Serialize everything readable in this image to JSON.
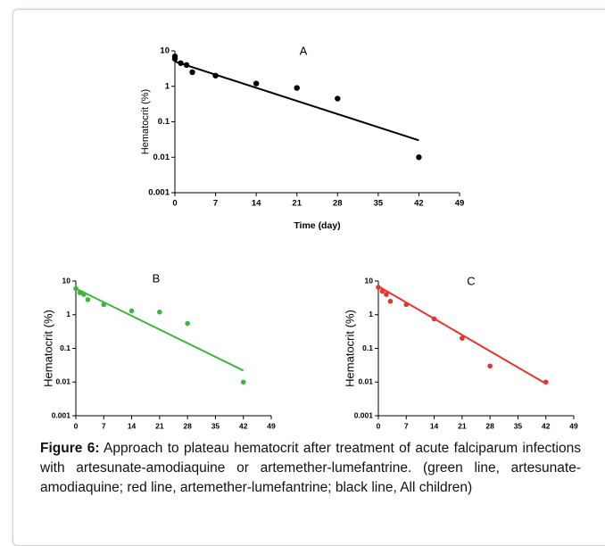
{
  "chart_data": [
    {
      "type": "scatter",
      "title": "A",
      "y_label": "Hematocrit (%)",
      "x_label": "Time (day)",
      "log_y": true,
      "xlim": [
        0,
        49
      ],
      "xticks": [
        0,
        7,
        14,
        21,
        28,
        35,
        42,
        49
      ],
      "ylim": [
        0.001,
        10
      ],
      "yticks": [
        0.001,
        0.01,
        0.1,
        1,
        10
      ],
      "series": [
        {
          "style": "points",
          "color": "#000000",
          "x": [
            0,
            0,
            1,
            2,
            3,
            7,
            14,
            21,
            28,
            42
          ],
          "values": [
            7,
            6,
            4.5,
            4,
            2.5,
            2,
            1.2,
            0.9,
            0.45,
            0.01
          ]
        },
        {
          "style": "line",
          "color": "#000000",
          "x": [
            0,
            42
          ],
          "values": [
            5,
            0.03
          ]
        }
      ]
    },
    {
      "type": "scatter",
      "title": "B",
      "y_label": "Hematocrit (%)",
      "log_y": true,
      "xlim": [
        0,
        49
      ],
      "xticks": [
        0,
        7,
        14,
        21,
        28,
        35,
        42,
        49
      ],
      "ylim": [
        0.001,
        10
      ],
      "yticks": [
        0.001,
        0.01,
        0.1,
        1,
        10
      ],
      "series": [
        {
          "style": "points",
          "color": "#3db53d",
          "x": [
            0,
            1,
            2,
            3,
            7,
            14,
            21,
            28,
            42
          ],
          "values": [
            6,
            4.5,
            4,
            2.8,
            2,
            1.3,
            1.2,
            0.55,
            0.01
          ]
        },
        {
          "style": "line",
          "color": "#3db53d",
          "x": [
            0,
            42
          ],
          "values": [
            6,
            0.022
          ]
        }
      ]
    },
    {
      "type": "scatter",
      "title": "C",
      "y_label": "Hematocrit (%)",
      "log_y": true,
      "xlim": [
        0,
        49
      ],
      "xticks": [
        0,
        7,
        14,
        21,
        28,
        35,
        42,
        49
      ],
      "ylim": [
        0.001,
        10
      ],
      "yticks": [
        0.001,
        0.01,
        0.1,
        1,
        10
      ],
      "series": [
        {
          "style": "points",
          "color": "#e8332d",
          "x": [
            0,
            1,
            2,
            3,
            7,
            14,
            21,
            28,
            42
          ],
          "values": [
            6.5,
            5,
            4,
            2.5,
            2,
            0.75,
            0.2,
            0.03,
            0.01
          ]
        },
        {
          "style": "line",
          "color": "#e8332d",
          "x": [
            0,
            42
          ],
          "values": [
            7,
            0.009
          ]
        }
      ]
    }
  ],
  "caption": {
    "label": "Figure 6:",
    "text": "Approach to plateau hematocrit after treatment of acute falciparum infections with artesunate-amodiaquine or artemether-lumefantrine. (green line, artesunate-amodiaquine; red line, artemether-lumefantrine; black line, All children)"
  }
}
